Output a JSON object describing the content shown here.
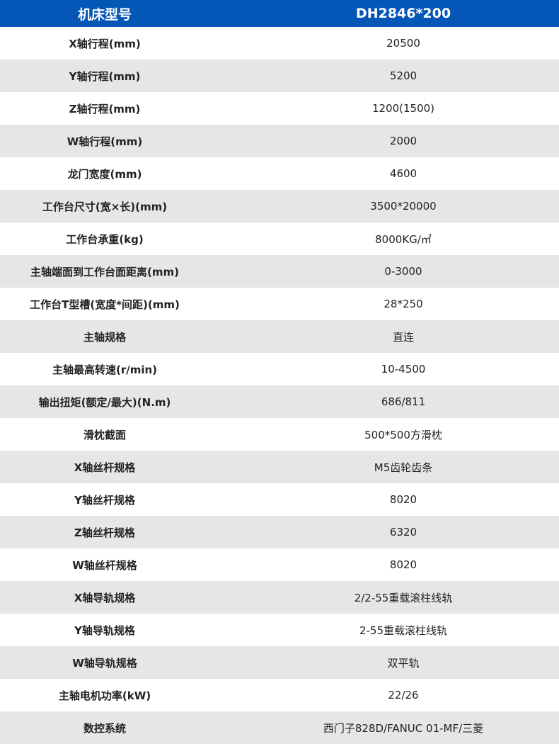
{
  "header": {
    "label": "机床型号",
    "value": "DH2846*200"
  },
  "colors": {
    "header_bg": "#0457b7",
    "stripe": "#e6e6e6"
  },
  "rows": [
    {
      "label": "X轴行程(mm)",
      "value": "20500"
    },
    {
      "label": "Y轴行程(mm)",
      "value": "5200"
    },
    {
      "label": "Z轴行程(mm)",
      "value": "1200(1500)"
    },
    {
      "label": "W轴行程(mm)",
      "value": "2000"
    },
    {
      "label": "龙门宽度(mm)",
      "value": "4600"
    },
    {
      "label": "工作台尺寸(宽×长)(mm)",
      "value": "3500*20000"
    },
    {
      "label": "工作台承重(kg)",
      "value": "8000KG/㎡"
    },
    {
      "label": "主轴端面到工作台面距离(mm)",
      "value": "0-3000"
    },
    {
      "label": "工作台T型槽(宽度*间距)(mm)",
      "value": "28*250"
    },
    {
      "label": "主轴规格",
      "value": "直连"
    },
    {
      "label": "主轴最高转速(r/min)",
      "value": "10-4500"
    },
    {
      "label": "输出扭矩(额定/最大)(N.m)",
      "value": "686/811"
    },
    {
      "label": "滑枕截面",
      "value": "500*500方滑枕"
    },
    {
      "label": "X轴丝杆规格",
      "value": "M5齿轮齿条"
    },
    {
      "label": "Y轴丝杆规格",
      "value": "8020"
    },
    {
      "label": "Z轴丝杆规格",
      "value": "6320"
    },
    {
      "label": "W轴丝杆规格",
      "value": "8020"
    },
    {
      "label": "X轴导轨规格",
      "value": "2/2-55重载滚柱线轨"
    },
    {
      "label": "Y轴导轨规格",
      "value": "2-55重载滚柱线轨"
    },
    {
      "label": "W轴导轨规格",
      "value": "双平轨"
    },
    {
      "label": "主轴电机功率(kW)",
      "value": "22/26"
    },
    {
      "label": "数控系统",
      "value": "西门子828D/FANUC 01-MF/三菱"
    }
  ]
}
